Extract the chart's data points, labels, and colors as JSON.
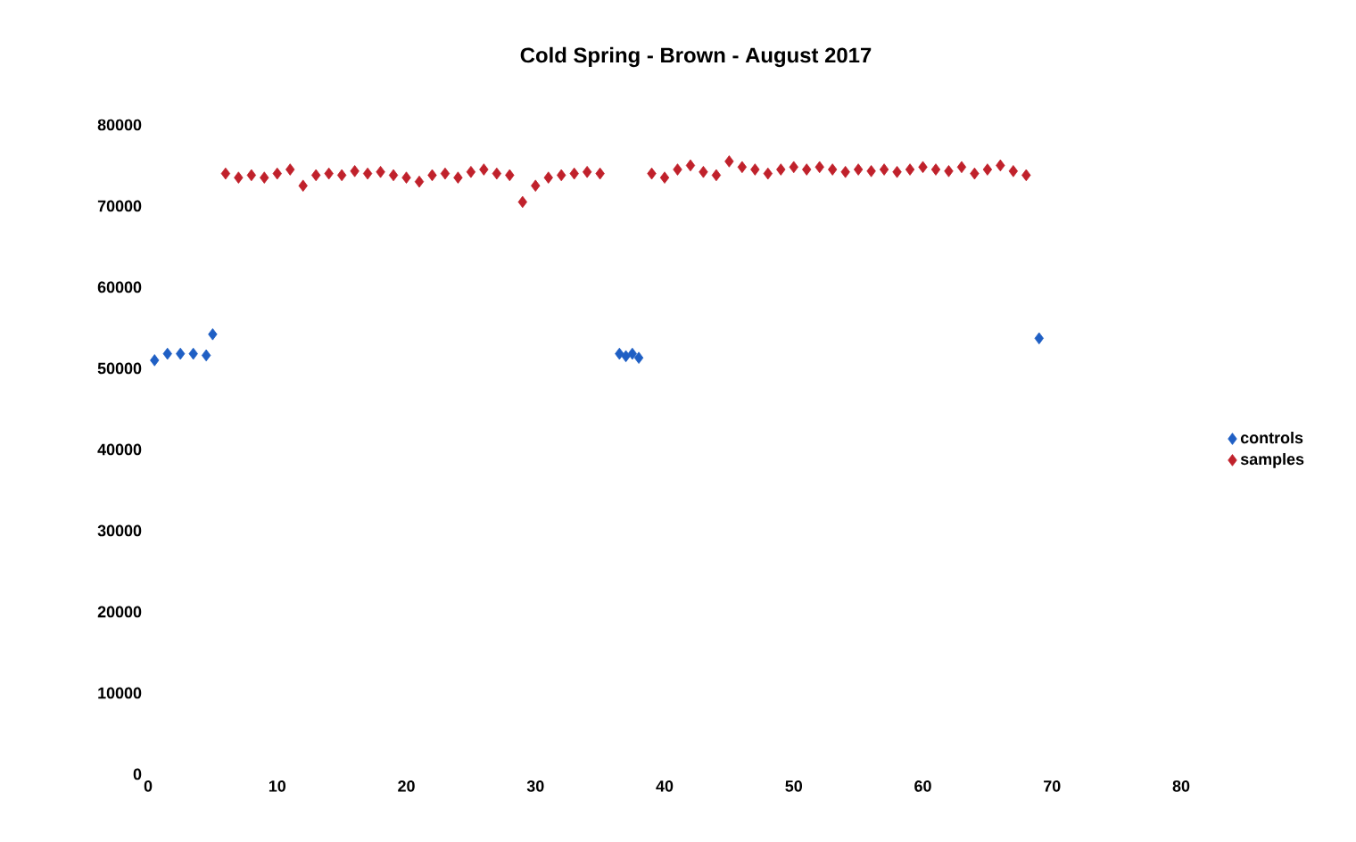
{
  "chart_data": {
    "type": "scatter",
    "title": "Cold Spring - Brown - August 2017",
    "xlim": [
      0,
      80
    ],
    "xticks": [
      0,
      10,
      20,
      30,
      40,
      50,
      60,
      70,
      80
    ],
    "ylim": [
      0,
      80000
    ],
    "yticks": [
      0,
      10000,
      20000,
      30000,
      40000,
      50000,
      60000,
      70000,
      80000
    ],
    "grid": false,
    "legend": "right",
    "marker": "diamond",
    "series": [
      {
        "name": "controls",
        "color": "#1f5fc4",
        "x": [
          0.5,
          1.5,
          2.5,
          3.5,
          4.5,
          5,
          36.5,
          37,
          37.5,
          38,
          69
        ],
        "values": [
          51000,
          51800,
          51800,
          51800,
          51600,
          54200,
          51800,
          51500,
          51800,
          51300,
          53700
        ]
      },
      {
        "name": "samples",
        "color": "#c0212b",
        "x": [
          6,
          7,
          8,
          9,
          10,
          11,
          12,
          13,
          14,
          15,
          16,
          17,
          18,
          19,
          20,
          21,
          22,
          23,
          24,
          25,
          26,
          27,
          28,
          29,
          30,
          31,
          32,
          33,
          34,
          35,
          39,
          40,
          41,
          42,
          43,
          44,
          45,
          46,
          47,
          48,
          49,
          50,
          51,
          52,
          53,
          54,
          55,
          56,
          57,
          58,
          59,
          60,
          61,
          62,
          63,
          64,
          65,
          66,
          67,
          68
        ],
        "values": [
          74000,
          73500,
          73800,
          73500,
          74000,
          74500,
          72500,
          73800,
          74000,
          73800,
          74300,
          74000,
          74200,
          73800,
          73500,
          73000,
          73800,
          74000,
          73500,
          74200,
          74500,
          74000,
          73800,
          70500,
          72500,
          73500,
          73800,
          74000,
          74200,
          74000,
          74000,
          73500,
          74500,
          75000,
          74200,
          73800,
          75500,
          74800,
          74500,
          74000,
          74500,
          74800,
          74500,
          74800,
          74500,
          74200,
          74500,
          74300,
          74500,
          74200,
          74500,
          74800,
          74500,
          74300,
          74800,
          74000,
          74500,
          75000,
          74300,
          73800
        ]
      }
    ]
  }
}
